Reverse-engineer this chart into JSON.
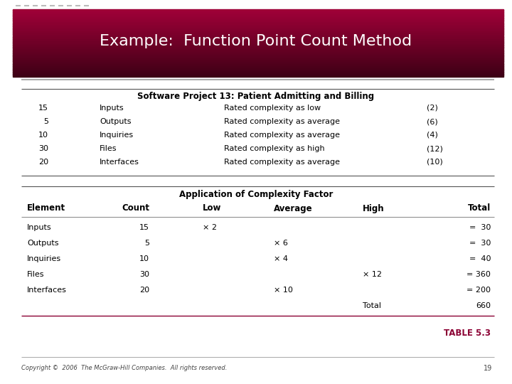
{
  "title": "Example:  Function Point Count Method",
  "title_bg_color_top": "#9B0030",
  "title_bg_color_bottom": "#3D0015",
  "title_text_color": "#FFFFFF",
  "slide_bg_color": "#FFFFFF",
  "section1_header": "Software Project 13: Patient Admitting and Billing",
  "section1_rows": [
    [
      "15",
      "Inputs",
      "Rated complexity as low",
      "(2)"
    ],
    [
      "5",
      "Outputs",
      "Rated complexity as average",
      "(6)"
    ],
    [
      "10",
      "Inquiries",
      "Rated complexity as average",
      "(4)"
    ],
    [
      "30",
      "Files",
      "Rated complexity as high",
      "(12)"
    ],
    [
      "20",
      "Interfaces",
      "Rated complexity as average",
      "(10)"
    ]
  ],
  "section2_header": "Application of Complexity Factor",
  "section2_col_headers": [
    "Element",
    "Count",
    "Low",
    "Average",
    "High",
    "Total"
  ],
  "section2_rows": [
    [
      "Inputs",
      "15",
      "× 2",
      "",
      "",
      "=  30"
    ],
    [
      "Outputs",
      "5",
      "",
      "× 6",
      "",
      "=  30"
    ],
    [
      "Inquiries",
      "10",
      "",
      "× 4",
      "",
      "=  40"
    ],
    [
      "Files",
      "30",
      "",
      "",
      "× 12",
      "= 360"
    ],
    [
      "Interfaces",
      "20",
      "",
      "× 10",
      "",
      "= 200"
    ]
  ],
  "total_label": "Total",
  "total_value": "660",
  "table_label": "TABLE 5.3",
  "table_label_color": "#8B0033",
  "footer_text": "Copyright ©  2006  The McGraw-Hill Companies.  All rights reserved.",
  "footer_page": "19",
  "body_text_color": "#000000",
  "header_font_size": 8.5,
  "body_font_size": 8.0,
  "dash_color": "#BBBBBB",
  "rule_color": "#777777",
  "rule_color_dark": "#555555"
}
